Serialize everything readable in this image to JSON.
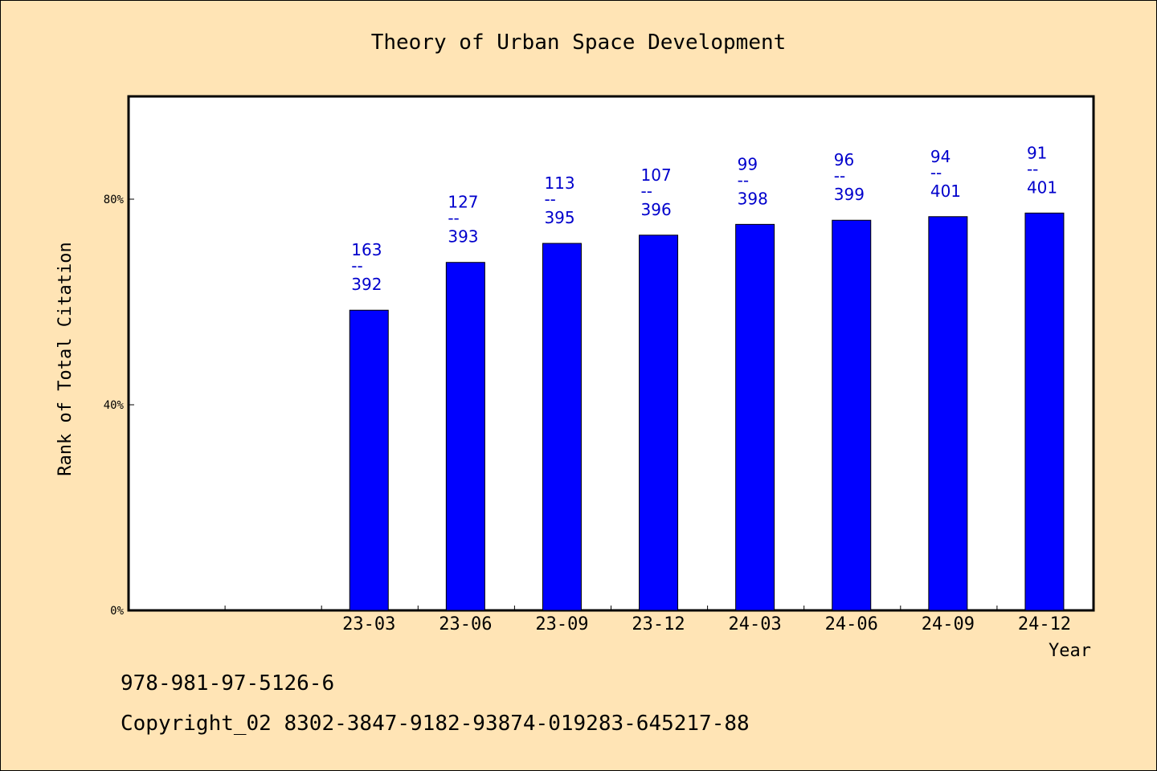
{
  "colors": {
    "background": "#FFE4B5",
    "plot_background": "#FFFFFF",
    "bar": "#0000FF",
    "data_label": "#0000CC"
  },
  "footer": {
    "isbn": "978-981-97-5126-6",
    "copyright": "Copyright_02 8302-3847-9182-93874-019283-645217-88"
  },
  "chart_data": {
    "type": "bar",
    "title": "Theory of Urban Space Development",
    "xlabel": "Year",
    "ylabel": "Rank of Total Citation",
    "ylim": [
      0,
      100
    ],
    "yticks": [
      0,
      40,
      80
    ],
    "ytick_labels": [
      "0%",
      "40%",
      "80%"
    ],
    "slots": 10,
    "first_category_slot": 2,
    "categories": [
      "23-03",
      "23-06",
      "23-09",
      "23-12",
      "24-03",
      "24-06",
      "24-09",
      "24-12"
    ],
    "values": [
      58.4,
      67.7,
      71.4,
      73.0,
      75.1,
      75.9,
      76.6,
      77.3
    ],
    "labels": [
      {
        "rank": "163",
        "sep": "--",
        "total": "392"
      },
      {
        "rank": "127",
        "sep": "--",
        "total": "393"
      },
      {
        "rank": "113",
        "sep": "--",
        "total": "395"
      },
      {
        "rank": "107",
        "sep": "--",
        "total": "396"
      },
      {
        "rank": "99",
        "sep": "--",
        "total": "398"
      },
      {
        "rank": "96",
        "sep": "--",
        "total": "399"
      },
      {
        "rank": "94",
        "sep": "--",
        "total": "401"
      },
      {
        "rank": "91",
        "sep": "--",
        "total": "401"
      }
    ],
    "grid": false,
    "legend": "none"
  }
}
